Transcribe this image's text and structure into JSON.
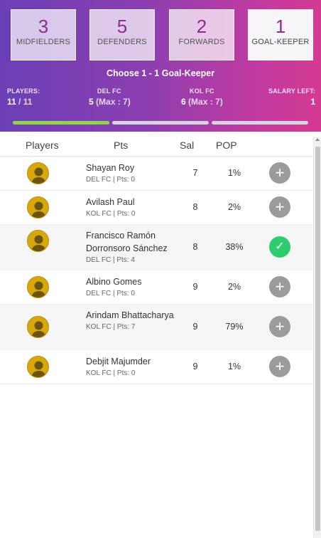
{
  "positions": [
    {
      "count": "3",
      "label": "MIDFIELDERS",
      "active": false
    },
    {
      "count": "5",
      "label": "DEFENDERS",
      "active": false
    },
    {
      "count": "2",
      "label": "FORWARDS",
      "active": false
    },
    {
      "count": "1",
      "label": "GOAL-KEEPER",
      "active": true
    }
  ],
  "choose_text": "Choose 1 - 1 Goal-Keeper",
  "stats": {
    "players": {
      "caption": "PLAYERS:",
      "value": "11",
      "suffix": " / 11"
    },
    "team1": {
      "caption": "DEL FC",
      "value": "5",
      "suffix": " (Max : 7)"
    },
    "team2": {
      "caption": "KOL FC",
      "value": "6",
      "suffix": " (Max : 7)"
    },
    "salary": {
      "caption": "SALARY LEFT:",
      "value": "1"
    }
  },
  "progress": [
    1,
    0,
    0
  ],
  "columns": {
    "players": "Players",
    "pts": "Pts",
    "sal": "Sal",
    "pop": "POP"
  },
  "colors": {
    "accent": "#8e2b8e",
    "progress_fill": "#8fd44a",
    "selected": "#2ecc71",
    "add": "#9b9b9b",
    "avatar": "#d7a80d"
  },
  "rows": [
    {
      "name": "Shayan Roy",
      "meta": "DEL FC | Pts: 0",
      "sal": "7",
      "pop": "1%",
      "action": "+",
      "selected": false
    },
    {
      "name": "Avilash Paul",
      "meta": "KOL FC | Pts: 0",
      "sal": "8",
      "pop": "2%",
      "action": "+",
      "selected": false
    },
    {
      "name": "Francisco Ramón Dorronsoro Sánchez",
      "meta": "DEL FC | Pts: 4",
      "sal": "8",
      "pop": "38%",
      "action": "✓",
      "selected": true
    },
    {
      "name": "Albino Gomes",
      "meta": "DEL FC | Pts: 0",
      "sal": "9",
      "pop": "2%",
      "action": "+",
      "selected": false
    },
    {
      "name": "Arindam Bhattacharya",
      "meta": "KOL FC | Pts: 7",
      "sal": "9",
      "pop": "79%",
      "action": "+",
      "selected": false
    },
    {
      "name": "Debjit Majumder",
      "meta": "KOL FC | Pts: 0",
      "sal": "9",
      "pop": "1%",
      "action": "+",
      "selected": false
    }
  ]
}
